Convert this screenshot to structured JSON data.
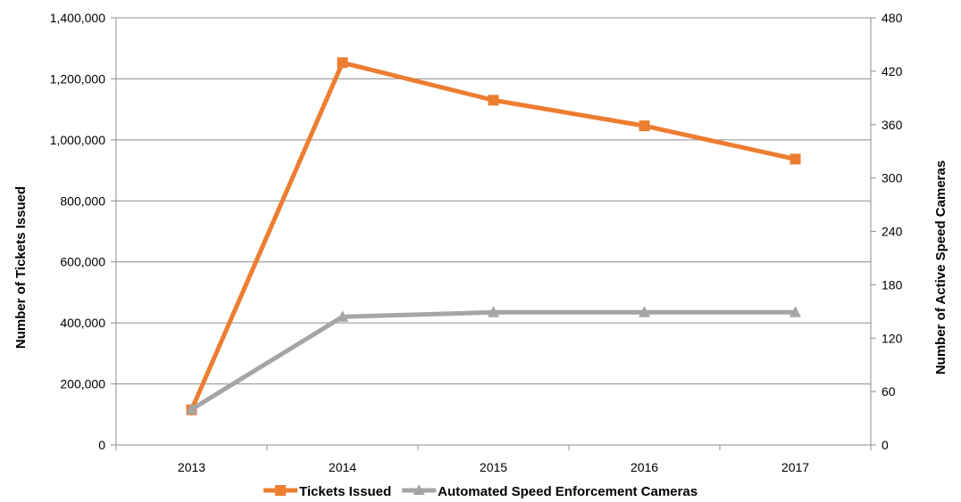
{
  "chart_data": {
    "type": "line",
    "categories": [
      "2013",
      "2014",
      "2015",
      "2016",
      "2017"
    ],
    "series": [
      {
        "name": "Tickets Issued",
        "axis": "left",
        "color": "#ED7D31",
        "marker": "square",
        "values": [
          115000,
          1253000,
          1130000,
          1046000,
          937000
        ]
      },
      {
        "name": "Automated Speed Enforcement Cameras",
        "axis": "right",
        "color": "#A5A5A5",
        "marker": "triangle",
        "values": [
          40,
          144,
          149,
          149,
          149
        ]
      }
    ],
    "y_left": {
      "label": "Number of Tickets Issued",
      "min": 0,
      "max": 1400000,
      "step": 200000,
      "tick_labels": [
        "0",
        "200,000",
        "400,000",
        "600,000",
        "800,000",
        "1,000,000",
        "1,200,000",
        "1,400,000"
      ]
    },
    "y_right": {
      "label": "Number of  Active Speed Cameras",
      "min": 0,
      "max": 480,
      "step": 60,
      "tick_labels": [
        "0",
        "60",
        "120",
        "180",
        "240",
        "300",
        "360",
        "420",
        "480"
      ]
    },
    "legend": {
      "position": "bottom"
    },
    "grid": true
  }
}
